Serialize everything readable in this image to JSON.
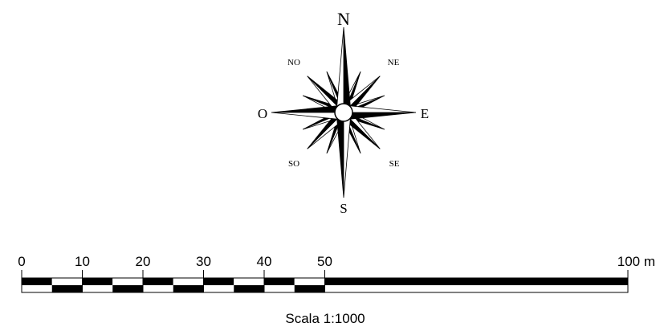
{
  "compass": {
    "north": "N",
    "south": "S",
    "east": "E",
    "west": "O",
    "northeast": "NE",
    "northwest": "NO",
    "southeast": "SE",
    "southwest": "SO"
  },
  "scale_bar": {
    "tick_labels": [
      "0",
      "10",
      "20",
      "30",
      "40",
      "50",
      "100 m"
    ],
    "tick_values": [
      0,
      10,
      20,
      30,
      40,
      50,
      100
    ],
    "segment_unit": 5,
    "caption": "Scala 1:1000"
  }
}
